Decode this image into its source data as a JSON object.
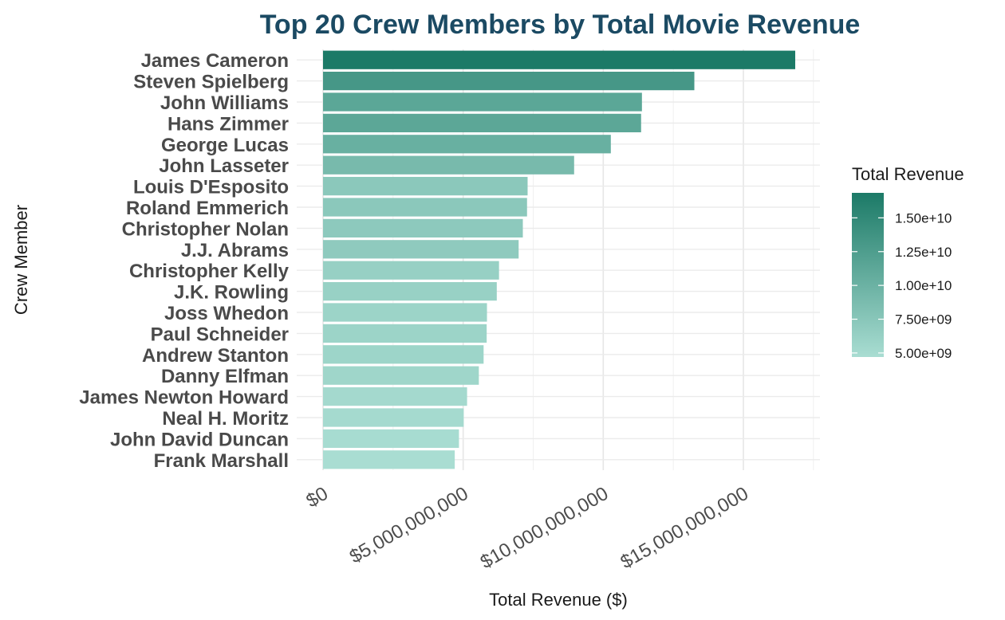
{
  "chart_data": {
    "type": "bar",
    "orientation": "horizontal",
    "title": "Top 20 Crew Members by Total Movie Revenue",
    "xlabel": "Total Revenue ($)",
    "ylabel": "Crew Member",
    "xlim": [
      0,
      17500000000
    ],
    "x_ticks": [
      0,
      5000000000,
      10000000000,
      15000000000
    ],
    "x_tick_labels": [
      "$0",
      "$5,000,000,000",
      "$10,000,000,000",
      "$15,000,000,000"
    ],
    "grid": true,
    "categories": [
      "James Cameron",
      "Steven Spielberg",
      "John Williams",
      "Hans Zimmer",
      "George Lucas",
      "John Lasseter",
      "Louis D'Esposito",
      "Roland Emmerich",
      "Christopher Nolan",
      "J.J. Abrams",
      "Christopher Kelly",
      "J.K. Rowling",
      "Joss Whedon",
      "Paul Schneider",
      "Andrew Stanton",
      "Danny Elfman",
      "James Newton Howard",
      "Neal H. Moritz",
      "John David Duncan",
      "Frank Marshall"
    ],
    "values": [
      16850000000,
      13250000000,
      11380000000,
      11350000000,
      10270000000,
      8960000000,
      7300000000,
      7280000000,
      7130000000,
      6980000000,
      6280000000,
      6200000000,
      5850000000,
      5840000000,
      5730000000,
      5560000000,
      5140000000,
      5020000000,
      4850000000,
      4700000000
    ],
    "legend": {
      "title": "Total Revenue",
      "position": "right",
      "color_low": "#a9ddd2",
      "color_high": "#1c7a67",
      "range": [
        4700000000,
        16850000000
      ],
      "ticks": [
        5000000000,
        7500000000,
        10000000000,
        12500000000,
        15000000000
      ],
      "tick_labels": [
        "5.00e+09",
        "7.50e+09",
        "1.00e+10",
        "1.25e+10",
        "1.50e+10"
      ]
    }
  }
}
